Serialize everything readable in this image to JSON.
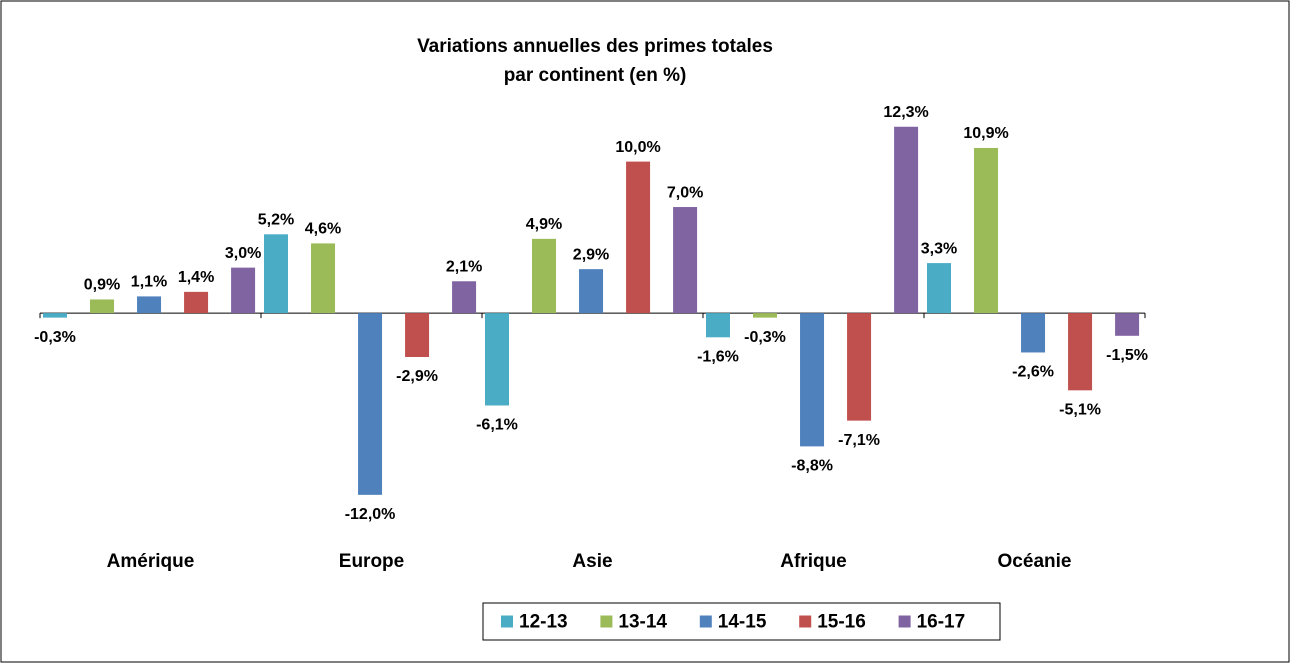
{
  "chart_data": {
    "type": "bar",
    "title": [
      "Variations annuelles des primes totales",
      "par continent (en %)"
    ],
    "categories": [
      "Amérique",
      "Europe",
      "Asie",
      "Afrique",
      "Océanie"
    ],
    "series": [
      {
        "name": "12-13",
        "color": "#4bacc6",
        "values": [
          -0.3,
          5.2,
          -6.1,
          -1.6,
          3.3
        ],
        "value_labels": [
          "-0,3%",
          "5,2%",
          "-6,1%",
          "-1,6%",
          "3,3%"
        ]
      },
      {
        "name": "13-14",
        "color": "#9bbb59",
        "values": [
          0.9,
          4.6,
          4.9,
          -0.3,
          10.9
        ],
        "value_labels": [
          "0,9%",
          "4,6%",
          "4,9%",
          "-0,3%",
          "10,9%"
        ]
      },
      {
        "name": "14-15",
        "color": "#4f81bd",
        "values": [
          1.1,
          -12.0,
          2.9,
          -8.8,
          -2.6
        ],
        "value_labels": [
          "1,1%",
          "-12,0%",
          "2,9%",
          "-8,8%",
          "-2,6%"
        ]
      },
      {
        "name": "15-16",
        "color": "#c0504d",
        "values": [
          1.4,
          -2.9,
          10.0,
          -7.1,
          -5.1
        ],
        "value_labels": [
          "1,4%",
          "-2,9%",
          "10,0%",
          "-7,1%",
          "-5,1%"
        ]
      },
      {
        "name": "16-17",
        "color": "#8064a2",
        "values": [
          3.0,
          2.1,
          7.0,
          12.3,
          -1.5
        ],
        "value_labels": [
          "3,0%",
          "2,1%",
          "7,0%",
          "12,3%",
          "-1,5%"
        ]
      }
    ],
    "ylim": [
      -13,
      14
    ],
    "legend": "bottom"
  }
}
